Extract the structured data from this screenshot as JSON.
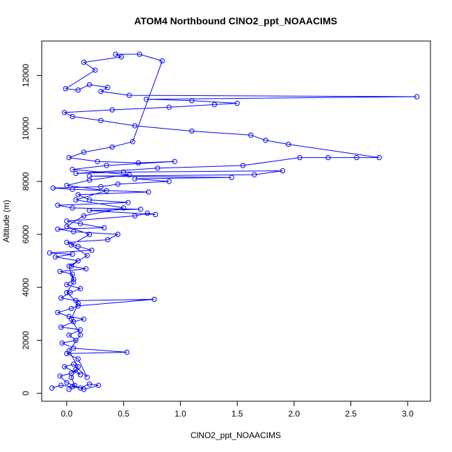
{
  "chart_data": {
    "type": "scatter",
    "title": "ATOM4 Northbound ClNO2_ppt_NOAACIMS",
    "xlabel": "ClNO2_ppt_NOAACIMS",
    "ylabel": "Altitude (m)",
    "xlim": [
      -0.22,
      3.2
    ],
    "ylim": [
      -300,
      13300
    ],
    "x_ticks": [
      0.0,
      0.5,
      1.0,
      1.5,
      2.0,
      2.5,
      3.0
    ],
    "x_tick_labels": [
      "0.0",
      "0.5",
      "1.0",
      "1.5",
      "2.0",
      "2.5",
      "3.0"
    ],
    "y_ticks": [
      0,
      2000,
      4000,
      6000,
      8000,
      10000,
      12000
    ],
    "y_tick_labels": [
      "0",
      "2000",
      "4000",
      "6000",
      "8000",
      "10000",
      "12000"
    ],
    "grid": false,
    "series": [
      {
        "color": "#0000ff",
        "marker": "open-circle",
        "connected": true,
        "points": [
          [
            -0.13,
            200
          ],
          [
            -0.05,
            300
          ],
          [
            0.05,
            250
          ],
          [
            0.12,
            200
          ],
          [
            0.2,
            350
          ],
          [
            0.28,
            300
          ],
          [
            0.15,
            150
          ],
          [
            0.0,
            400
          ],
          [
            -0.06,
            650
          ],
          [
            0.04,
            750
          ],
          [
            0.08,
            900
          ],
          [
            0.12,
            700
          ],
          [
            -0.02,
            1000
          ],
          [
            0.06,
            1100
          ],
          [
            0.18,
            600
          ],
          [
            0.1,
            1300
          ],
          [
            0.0,
            1500
          ],
          [
            0.53,
            1550
          ],
          [
            0.06,
            1700
          ],
          [
            -0.04,
            1900
          ],
          [
            0.08,
            2000
          ],
          [
            0.02,
            2200
          ],
          [
            0.12,
            2400
          ],
          [
            -0.05,
            2500
          ],
          [
            0.06,
            2700
          ],
          [
            0.15,
            2800
          ],
          [
            0.02,
            2900
          ],
          [
            -0.08,
            3050
          ],
          [
            0.04,
            3200
          ],
          [
            0.1,
            3300
          ],
          [
            0.77,
            3550
          ],
          [
            0.08,
            3500
          ],
          [
            -0.05,
            3600
          ],
          [
            0.03,
            3800
          ],
          [
            0.12,
            3950
          ],
          [
            0.0,
            4100
          ],
          [
            0.06,
            4300
          ],
          [
            0.05,
            4500
          ],
          [
            -0.06,
            4600
          ],
          [
            0.17,
            4700
          ],
          [
            0.04,
            4800
          ],
          [
            0.1,
            5000
          ],
          [
            -0.1,
            5150
          ],
          [
            0.05,
            5250
          ],
          [
            -0.15,
            5300
          ],
          [
            0.22,
            5400
          ],
          [
            0.1,
            5550
          ],
          [
            0.0,
            5700
          ],
          [
            0.36,
            5800
          ],
          [
            0.45,
            6000
          ],
          [
            0.06,
            6100
          ],
          [
            -0.08,
            6200
          ],
          [
            0.33,
            6250
          ],
          [
            0.12,
            6400
          ],
          [
            0.0,
            6500
          ],
          [
            0.6,
            6700
          ],
          [
            0.71,
            6800
          ],
          [
            0.78,
            6750
          ],
          [
            0.2,
            6900
          ],
          [
            0.65,
            6950
          ],
          [
            0.05,
            7000
          ],
          [
            -0.08,
            7100
          ],
          [
            0.54,
            7200
          ],
          [
            0.2,
            7300
          ],
          [
            0.1,
            7500
          ],
          [
            0.72,
            7600
          ],
          [
            0.05,
            7700
          ],
          [
            -0.12,
            7750
          ],
          [
            0.3,
            7800
          ],
          [
            0.45,
            7900
          ],
          [
            0.9,
            8000
          ],
          [
            0.6,
            8100
          ],
          [
            1.45,
            8150
          ],
          [
            0.2,
            8200
          ],
          [
            1.65,
            8250
          ],
          [
            1.9,
            8400
          ],
          [
            0.5,
            8350
          ],
          [
            0.08,
            8300
          ],
          [
            0.8,
            8500
          ],
          [
            1.55,
            8600
          ],
          [
            2.05,
            8900
          ],
          [
            2.3,
            8900
          ],
          [
            2.55,
            8900
          ],
          [
            2.75,
            8900
          ],
          [
            1.95,
            9400
          ],
          [
            1.75,
            9550
          ],
          [
            1.62,
            9750
          ],
          [
            1.1,
            9900
          ],
          [
            0.6,
            10100
          ],
          [
            0.3,
            10300
          ],
          [
            0.05,
            10450
          ],
          [
            -0.02,
            10600
          ],
          [
            0.4,
            10700
          ],
          [
            0.9,
            10800
          ],
          [
            1.3,
            10900
          ],
          [
            1.5,
            10950
          ],
          [
            1.1,
            11050
          ],
          [
            0.7,
            11100
          ],
          [
            3.08,
            11200
          ],
          [
            0.55,
            11250
          ],
          [
            0.3,
            11400
          ],
          [
            0.36,
            11550
          ],
          [
            0.2,
            11650
          ],
          [
            0.1,
            11450
          ],
          [
            -0.01,
            11500
          ],
          [
            0.25,
            12200
          ],
          [
            0.15,
            12500
          ],
          [
            0.48,
            12700
          ],
          [
            0.43,
            12800
          ],
          [
            0.64,
            12800
          ],
          [
            0.84,
            12550
          ],
          [
            0.58,
            9500
          ],
          [
            0.4,
            9300
          ],
          [
            0.15,
            9100
          ],
          [
            0.02,
            8900
          ],
          [
            0.27,
            8750
          ],
          [
            0.63,
            8700
          ],
          [
            0.95,
            8750
          ],
          [
            0.35,
            8600
          ],
          [
            0.05,
            8450
          ],
          [
            0.55,
            8250
          ],
          [
            0.2,
            8050
          ],
          [
            0.0,
            7850
          ],
          [
            0.35,
            7650
          ],
          [
            0.08,
            7300
          ],
          [
            0.5,
            7000
          ],
          [
            0.15,
            6700
          ],
          [
            0.0,
            6300
          ],
          [
            0.2,
            6000
          ],
          [
            0.04,
            5600
          ],
          [
            0.18,
            5200
          ],
          [
            0.02,
            4800
          ],
          [
            0.06,
            4200
          ],
          [
            0.0,
            3800
          ],
          [
            0.1,
            3400
          ],
          [
            0.04,
            2800
          ],
          [
            0.12,
            2200
          ],
          [
            0.02,
            1600
          ],
          [
            0.1,
            1000
          ],
          [
            0.04,
            600
          ],
          [
            0.07,
            300
          ],
          [
            0.02,
            150
          ]
        ]
      }
    ]
  }
}
